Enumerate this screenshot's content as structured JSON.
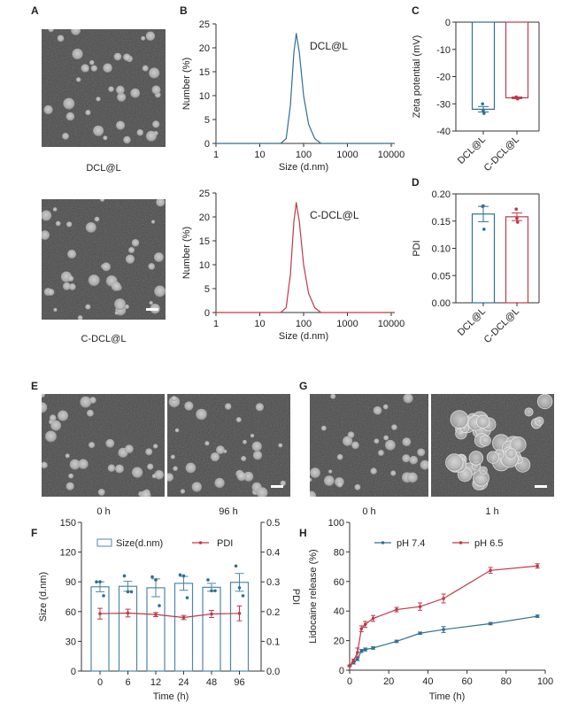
{
  "panel_labels": [
    "A",
    "B",
    "C",
    "D",
    "E",
    "F",
    "G",
    "H"
  ],
  "micrographs": {
    "A": {
      "captions": [
        "DCL@L",
        "C-DCL@L"
      ]
    },
    "E": {
      "captions": [
        "0 h",
        "96 h"
      ]
    },
    "G": {
      "captions": [
        "0 h",
        "1 h"
      ]
    }
  },
  "colors": {
    "blue": "#2f6f96",
    "red": "#c0394b",
    "axis": "#333333"
  },
  "chart_data": [
    {
      "id": "B1",
      "type": "line",
      "xscale": "log",
      "xlim": [
        1,
        10000
      ],
      "ylim": [
        0,
        25
      ],
      "xlabel": "Size (d.nm)",
      "ylabel": "Number (%)",
      "xticks": [
        "1",
        "10",
        "100",
        "1000",
        "10000"
      ],
      "yticks": [
        "0",
        "5",
        "10",
        "15",
        "20",
        "25"
      ],
      "annotation": "DCL@L",
      "color": "#2f6f96",
      "x": [
        30,
        40,
        50,
        60,
        68,
        80,
        100,
        130,
        180,
        250
      ],
      "y": [
        0,
        1,
        8,
        19,
        23,
        19,
        10,
        4,
        1,
        0
      ]
    },
    {
      "id": "B2",
      "type": "line",
      "xscale": "log",
      "xlim": [
        1,
        10000
      ],
      "ylim": [
        0,
        25
      ],
      "xlabel": "Size (d.nm)",
      "ylabel": "Number (%)",
      "xticks": [
        "1",
        "10",
        "100",
        "1000",
        "10000"
      ],
      "yticks": [
        "0",
        "5",
        "10",
        "15",
        "20",
        "25"
      ],
      "annotation": "C-DCL@L",
      "color": "#c0394b",
      "x": [
        30,
        40,
        50,
        60,
        68,
        80,
        100,
        130,
        180,
        250
      ],
      "y": [
        0,
        1,
        8,
        19,
        23,
        19,
        10,
        4,
        1,
        0
      ]
    },
    {
      "id": "C",
      "type": "bar",
      "ylabel": "Zeta potential (mV)",
      "ylim": [
        -40,
        0
      ],
      "yticks": [
        "0",
        "-10",
        "-20",
        "-30",
        "-40"
      ],
      "categories": [
        "DCL@L",
        "C-DCL@L"
      ],
      "values": [
        -32,
        -27.8
      ],
      "errors": [
        1.0,
        0.3
      ],
      "points": [
        [
          -30,
          -32.5,
          -33.5
        ],
        [
          -27.5,
          -28,
          -28.2
        ]
      ],
      "colors": [
        "#2f6f96",
        "#c0394b"
      ]
    },
    {
      "id": "D",
      "type": "bar",
      "ylabel": "PDI",
      "ylim": [
        0,
        0.2
      ],
      "yticks": [
        "0.00",
        "0.05",
        "0.10",
        "0.15",
        "0.20"
      ],
      "categories": [
        "DCL@L",
        "C-DCL@L"
      ],
      "values": [
        0.163,
        0.158
      ],
      "errors": [
        0.014,
        0.007
      ],
      "points": [
        [
          0.177,
          0.178,
          0.135
        ],
        [
          0.172,
          0.155,
          0.148
        ]
      ],
      "colors": [
        "#2f6f96",
        "#c0394b"
      ]
    },
    {
      "id": "F",
      "type": "bar",
      "xlabel": "Time (h)",
      "ylabel": "Size (d.nm)",
      "y2label": "PDI",
      "ylim": [
        0,
        150
      ],
      "y2lim": [
        0,
        0.5
      ],
      "yticks": [
        "0",
        "30",
        "60",
        "90",
        "120",
        "150"
      ],
      "y2ticks": [
        "0.0",
        "0.1",
        "0.2",
        "0.3",
        "0.4",
        "0.5"
      ],
      "categories": [
        "0",
        "6",
        "12",
        "24",
        "48",
        "96"
      ],
      "legend": [
        "Size(d.nm)",
        "PDI"
      ],
      "legend_position": "top",
      "series": [
        {
          "name": "Size(d.nm)",
          "type": "bar",
          "values": [
            85,
            85.5,
            84,
            88.5,
            84.5,
            89.5
          ],
          "errors": [
            5,
            5,
            9,
            7,
            4,
            9
          ],
          "points": [
            [
              90,
              90,
              76
            ],
            [
              96,
              80,
              80
            ],
            [
              95,
              92,
              66
            ],
            [
              97,
              96,
              74
            ],
            [
              92,
              81,
              81
            ],
            [
              106,
              84,
              76
            ]
          ],
          "color": "#4d87a8"
        },
        {
          "name": "PDI",
          "type": "line",
          "axis": "right",
          "values": [
            0.193,
            0.195,
            0.19,
            0.18,
            0.192,
            0.194
          ],
          "errors": [
            0.018,
            0.013,
            0.007,
            0.007,
            0.012,
            0.025
          ],
          "color": "#c0394b"
        }
      ]
    },
    {
      "id": "H",
      "type": "line",
      "xlabel": "Time (h)",
      "ylabel": "Lidocaine release (%)",
      "xlim": [
        0,
        100
      ],
      "ylim": [
        0,
        100
      ],
      "xticks": [
        "0",
        "20",
        "40",
        "60",
        "80",
        "100"
      ],
      "yticks": [
        "0",
        "20",
        "40",
        "60",
        "80",
        "100"
      ],
      "legend_position": "top",
      "x": [
        0,
        2,
        4,
        6,
        8,
        12,
        24,
        36,
        48,
        72,
        96
      ],
      "series": [
        {
          "name": "pH 7.4",
          "color": "#2f6f96",
          "values": [
            3,
            5,
            7.5,
            13,
            14,
            15,
            19.5,
            25,
            27.5,
            31.5,
            36.5
          ],
          "errors": [
            0.5,
            0.8,
            1,
            1,
            1,
            0.8,
            0.8,
            0.8,
            2,
            0.8,
            0.8
          ]
        },
        {
          "name": "pH 6.5",
          "color": "#c0394b",
          "values": [
            3,
            6.5,
            12,
            28,
            31,
            35,
            41,
            43,
            48.5,
            67.5,
            70.5
          ],
          "errors": [
            0.5,
            1,
            3,
            2,
            2,
            2,
            1.5,
            2.5,
            3,
            2,
            1.5
          ]
        }
      ]
    }
  ]
}
